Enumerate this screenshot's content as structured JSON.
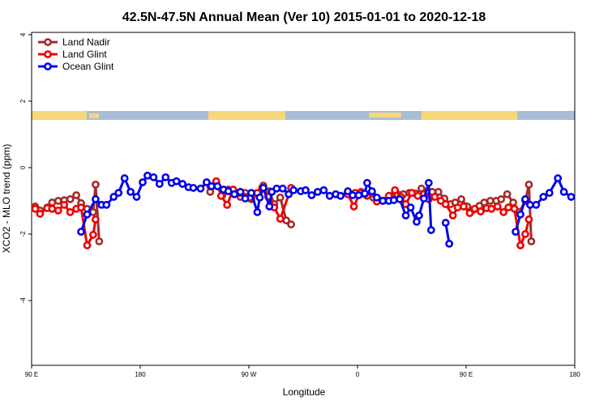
{
  "chart_data": {
    "type": "line",
    "title": "42.5N-47.5N Annual Mean (Ver 10)   2015-01-01 to 2020-12-18",
    "xlabel": "Longitude",
    "ylabel": "XCO2 - MLO trend (ppm)",
    "xlim": [
      90,
      540
    ],
    "ylim": [
      -5.95,
      4.07
    ],
    "xticks": [
      {
        "value": 90,
        "label": "90 E"
      },
      180,
      {
        "value": 270,
        "label": "90 W"
      },
      {
        "value": 360,
        "label": "0"
      },
      {
        "value": 450,
        "label": "90 E"
      },
      {
        "value": 540,
        "label": "180"
      }
    ],
    "yticks": [
      -4,
      -2,
      0,
      2,
      4
    ],
    "legend": "top-left",
    "series": [
      {
        "name": "Land Nadir",
        "color": "#a52a2a",
        "x": [
          93,
          97,
          103,
          107,
          112,
          117,
          122,
          127,
          131,
          136,
          141,
          143,
          146,
          null,
          238,
          243,
          248,
          253,
          258,
          263,
          267,
          272,
          277,
          282,
          287,
          291,
          296,
          301,
          305,
          null,
          358,
          363,
          368,
          373,
          378,
          384,
          388,
          393,
          398,
          403,
          408,
          413,
          417,
          422,
          427,
          432,
          437,
          441,
          446,
          451,
          456,
          461,
          465,
          470,
          475,
          479,
          484,
          489,
          494,
          499,
          502,
          504
        ],
        "values": [
          -1.17,
          -1.29,
          -1.2,
          -1.05,
          -1.0,
          -0.98,
          -0.95,
          -0.83,
          -1.07,
          -1.24,
          -1.34,
          -0.51,
          -2.22,
          null,
          -0.73,
          -0.51,
          -0.83,
          -0.66,
          -0.73,
          -0.88,
          -0.76,
          -0.95,
          -0.8,
          -0.54,
          -0.71,
          -1.1,
          -0.9,
          -1.59,
          -1.71,
          null,
          -0.76,
          -0.73,
          -0.85,
          -0.9,
          -0.98,
          -0.98,
          -0.88,
          -0.8,
          -0.8,
          -0.76,
          -0.78,
          -0.63,
          -0.73,
          -0.73,
          -0.73,
          -0.93,
          -1.1,
          -1.05,
          -0.95,
          -1.17,
          -1.27,
          -1.15,
          -1.05,
          -1.0,
          -1.0,
          -0.95,
          -0.8,
          -1.05,
          -1.34,
          -1.0,
          -0.51,
          -2.22
        ]
      },
      {
        "name": "Land Glint",
        "color": "#ee0000",
        "x": [
          93,
          97,
          103,
          107,
          112,
          117,
          122,
          127,
          131,
          136,
          141,
          143,
          null,
          238,
          243,
          247,
          252,
          257,
          262,
          267,
          271,
          277,
          281,
          286,
          291,
          296,
          305,
          null,
          352,
          357,
          362,
          366,
          372,
          376,
          381,
          386,
          391,
          396,
          400,
          405,
          410,
          415,
          419,
          424,
          429,
          433,
          439,
          443,
          448,
          453,
          457,
          462,
          467,
          471,
          476,
          481,
          485,
          490,
          495,
          499,
          502
        ],
        "values": [
          -1.24,
          -1.39,
          -1.22,
          -1.24,
          -1.29,
          -1.12,
          -1.34,
          -1.24,
          -1.2,
          -2.34,
          -2.02,
          -1.56,
          null,
          -0.56,
          -0.41,
          -0.85,
          -1.12,
          -0.66,
          -0.76,
          -0.88,
          -0.9,
          -0.76,
          -0.61,
          -0.88,
          -1.2,
          -1.54,
          -0.61,
          null,
          -0.8,
          -1.17,
          -0.76,
          -0.8,
          -0.78,
          -1.02,
          -1.0,
          -0.85,
          -0.68,
          -0.88,
          -1.1,
          -0.76,
          -0.85,
          -0.8,
          -0.95,
          -0.88,
          -1.0,
          -1.1,
          -1.44,
          -1.2,
          -1.17,
          -1.37,
          -1.24,
          -1.32,
          -1.22,
          -1.24,
          -1.17,
          -1.34,
          -1.2,
          -1.24,
          -2.34,
          -2.0,
          -1.56
        ]
      },
      {
        "name": "Ocean Glint",
        "color": "#0000ee",
        "x": [
          131,
          136,
          143,
          148,
          152,
          158,
          162,
          167,
          172,
          177,
          182,
          186,
          191,
          196,
          201,
          206,
          210,
          215,
          220,
          224,
          230,
          235,
          239,
          244,
          249,
          253,
          258,
          263,
          267,
          272,
          277,
          279,
          282,
          287,
          289,
          293,
          298,
          303,
          307,
          313,
          317,
          322,
          327,
          332,
          337,
          342,
          346,
          352,
          356,
          361,
          366,
          368,
          372,
          376,
          381,
          386,
          390,
          395,
          400,
          404,
          409,
          411,
          415,
          419,
          421,
          null,
          433,
          436,
          null,
          491,
          495,
          499,
          503,
          508,
          514,
          519,
          526,
          531,
          537
        ],
        "values": [
          -1.93,
          -1.41,
          -0.95,
          -1.12,
          -1.12,
          -0.88,
          -0.76,
          -0.32,
          -0.73,
          -0.88,
          -0.44,
          -0.24,
          -0.29,
          -0.49,
          -0.29,
          -0.46,
          -0.41,
          -0.49,
          -0.59,
          -0.61,
          -0.63,
          -0.44,
          -0.56,
          -0.56,
          -0.66,
          -0.71,
          -0.8,
          -0.73,
          -0.93,
          -0.76,
          -1.34,
          -0.9,
          -0.61,
          -1.17,
          -0.73,
          -0.63,
          -0.63,
          -0.8,
          -0.68,
          -0.71,
          -0.68,
          -0.83,
          -0.73,
          -0.68,
          -0.85,
          -0.8,
          -0.85,
          -0.71,
          -0.83,
          -0.83,
          -0.78,
          -0.46,
          -0.71,
          -0.9,
          -1.0,
          -1.0,
          -0.98,
          -0.95,
          -1.44,
          -1.2,
          -1.63,
          -1.44,
          -0.93,
          -0.46,
          -1.88,
          null,
          -1.66,
          -2.29,
          null,
          -1.93,
          -1.41,
          -0.95,
          -1.12,
          -1.12,
          -0.88,
          -0.76,
          -0.32,
          -0.73,
          -0.88
        ]
      }
    ]
  }
}
